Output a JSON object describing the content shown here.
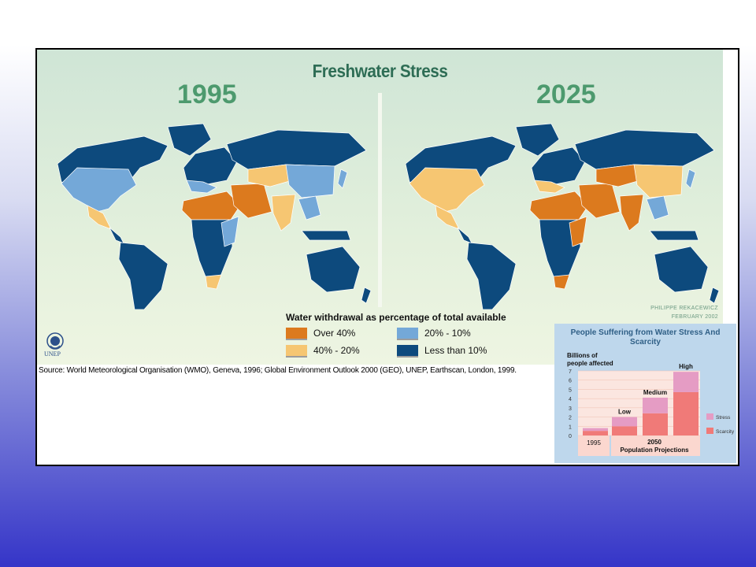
{
  "map": {
    "title": "Freshwater Stress",
    "panels": [
      {
        "year": "1995"
      },
      {
        "year": "2025"
      }
    ],
    "credit_author": "PHILIPPE REKACEWICZ",
    "credit_date": "FEBRUARY 2002",
    "logo_text": "UNEP",
    "legend": {
      "title": "Water withdrawal as percentage of total available",
      "items": [
        {
          "label": "Over 40%",
          "color": "#dc7a1e"
        },
        {
          "label": "20% - 10%",
          "color": "#74a8d8"
        },
        {
          "label": "40% - 20%",
          "color": "#f6c672"
        },
        {
          "label": "Less than 10%",
          "color": "#0d4a7d"
        }
      ]
    },
    "source": "Source: World Meteorological Organisation (WMO), Geneva, 1996; Global Environment Outlook 2000 (GEO), UNEP, Earthscan, London, 1999.",
    "colors": {
      "land_base": "#0d4a7d",
      "border": "#ffffff"
    }
  },
  "chart_data": {
    "type": "bar",
    "title": "People Suffering from Water Stress And Scarcity",
    "ylabel": "Billions of people affected",
    "ylim": [
      0,
      7
    ],
    "yticks": [
      "0",
      "1",
      "2",
      "3",
      "4",
      "5",
      "6",
      "7"
    ],
    "categories": [
      "1995",
      "Low",
      "Medium",
      "High"
    ],
    "group_labels": {
      "g1995": "1995",
      "g2050": "2050",
      "projections": "Population Projections"
    },
    "series": [
      {
        "name": "Scarcity",
        "color": "#f07a78",
        "values": [
          0.5,
          1.0,
          2.4,
          4.7
        ]
      },
      {
        "name": "Stress",
        "color": "#e59cc4",
        "values": [
          0.3,
          1.0,
          1.7,
          2.2
        ]
      }
    ],
    "legend": "right"
  }
}
